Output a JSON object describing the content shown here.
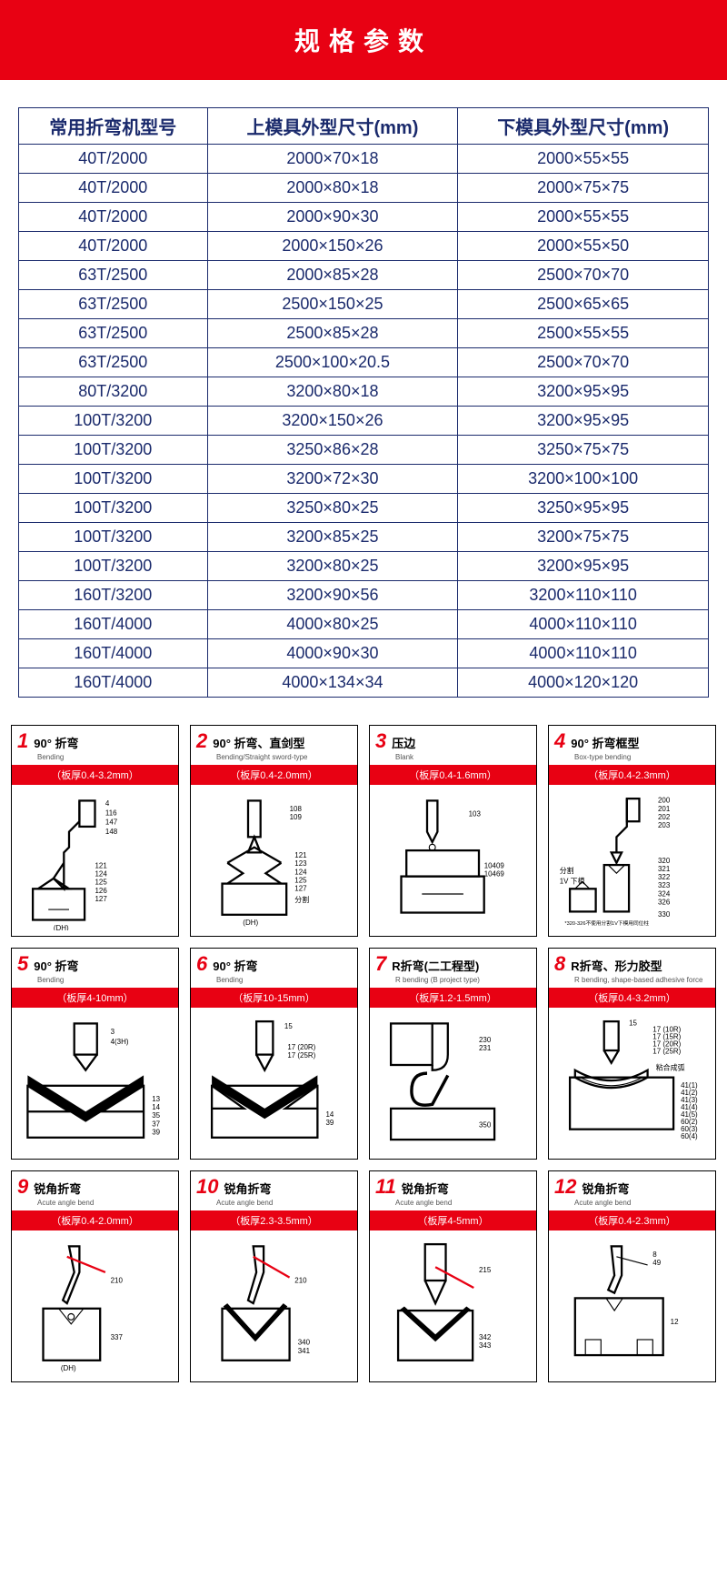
{
  "banner": {
    "title": "规格参数"
  },
  "table": {
    "columns": [
      "常用折弯机型号",
      "上模具外型尺寸(mm)",
      "下模具外型尺寸(mm)"
    ],
    "rows": [
      [
        "40T/2000",
        "2000×70×18",
        "2000×55×55"
      ],
      [
        "40T/2000",
        "2000×80×18",
        "2000×75×75"
      ],
      [
        "40T/2000",
        "2000×90×30",
        "2000×55×55"
      ],
      [
        "40T/2000",
        "2000×150×26",
        "2000×55×50"
      ],
      [
        "63T/2500",
        "2000×85×28",
        "2500×70×70"
      ],
      [
        "63T/2500",
        "2500×150×25",
        "2500×65×65"
      ],
      [
        "63T/2500",
        "2500×85×28",
        "2500×55×55"
      ],
      [
        "63T/2500",
        "2500×100×20.5",
        "2500×70×70"
      ],
      [
        "80T/3200",
        "3200×80×18",
        "3200×95×95"
      ],
      [
        "100T/3200",
        "3200×150×26",
        "3200×95×95"
      ],
      [
        "100T/3200",
        "3250×86×28",
        "3250×75×75"
      ],
      [
        "100T/3200",
        "3200×72×30",
        "3200×100×100"
      ],
      [
        "100T/3200",
        "3250×80×25",
        "3250×95×95"
      ],
      [
        "100T/3200",
        "3200×85×25",
        "3200×75×75"
      ],
      [
        "100T/3200",
        "3200×80×25",
        "3200×95×95"
      ],
      [
        "160T/3200",
        "3200×90×56",
        "3200×110×110"
      ],
      [
        "160T/4000",
        "4000×80×25",
        "4000×110×110"
      ],
      [
        "160T/4000",
        "4000×90×30",
        "4000×110×110"
      ],
      [
        "160T/4000",
        "4000×134×34",
        "4000×120×120"
      ]
    ],
    "border_color": "#1a2a6c",
    "text_color": "#1a2a6c"
  },
  "cards": [
    {
      "num": "1",
      "title": "90° 折弯",
      "sub": "Bending",
      "strip": "（板厚0.4-3.2mm）",
      "svg": "bend90a"
    },
    {
      "num": "2",
      "title": "90° 折弯、直剑型",
      "sub": "Bending/Straight sword-type",
      "strip": "（板厚0.4-2.0mm）",
      "svg": "bend90b"
    },
    {
      "num": "3",
      "title": "压边",
      "sub": "Blank",
      "strip": "（板厚0.4-1.6mm）",
      "svg": "blank"
    },
    {
      "num": "4",
      "title": "90° 折弯框型",
      "sub": "Box-type bending",
      "strip": "（板厚0.4-2.3mm）",
      "svg": "box"
    },
    {
      "num": "5",
      "title": "90° 折弯",
      "sub": "Bending",
      "strip": "（板厚4-10mm）",
      "svg": "thick1"
    },
    {
      "num": "6",
      "title": "90° 折弯",
      "sub": "Bending",
      "strip": "（板厚10-15mm）",
      "svg": "thick2"
    },
    {
      "num": "7",
      "title": "R折弯(二工程型)",
      "sub": "R bending (B project type)",
      "strip": "（板厚1.2-1.5mm）",
      "svg": "rbend"
    },
    {
      "num": "8",
      "title": "R折弯、形力胶型",
      "sub": "R bending, shape-based adhesive force",
      "strip": "（板厚0.4-3.2mm）",
      "svg": "rbend2"
    },
    {
      "num": "9",
      "title": "锐角折弯",
      "sub": "Acute angle bend",
      "strip": "（板厚0.4-2.0mm）",
      "svg": "acute1"
    },
    {
      "num": "10",
      "title": "锐角折弯",
      "sub": "Acute angle bend",
      "strip": "（板厚2.3-3.5mm）",
      "svg": "acute2"
    },
    {
      "num": "11",
      "title": "锐角折弯",
      "sub": "Acute angle bend",
      "strip": "（板厚4-5mm）",
      "svg": "acute3"
    },
    {
      "num": "12",
      "title": "锐角折弯",
      "sub": "Acute angle bend",
      "strip": "（板厚0.4-2.3mm）",
      "svg": "acute4"
    }
  ],
  "colors": {
    "red": "#e80113",
    "blue": "#1a2a6c",
    "black": "#000000"
  }
}
